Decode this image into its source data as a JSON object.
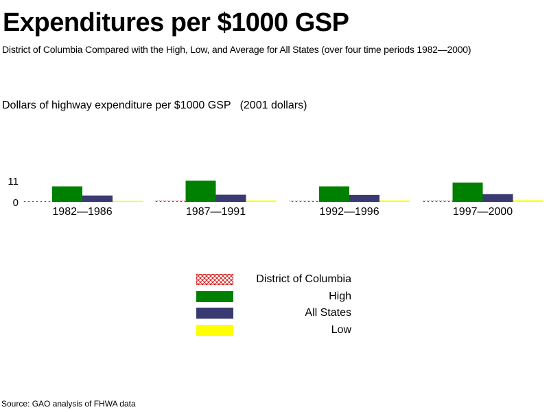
{
  "title": "Expenditures per $1000 GSP",
  "subtitle": "District of Columbia Compared with the High, Low, and Average for All States (over four time periods 1982—2000)",
  "source": "Source: GAO analysis of FHWA data",
  "colors": {
    "dc": "#cc0000",
    "high": "#008000",
    "all_states": "#3a3a72",
    "low": "#ffff00",
    "axis": "#000000"
  },
  "chart_data": {
    "type": "bar",
    "title": "Expenditures per $1000 GSP",
    "subtitle": "District of Columbia Compared with the High, Low, and Average for All States (over four time periods 1982—2000)",
    "xlabel": "",
    "ylabel": "Dollars of highway expenditure per $1000 GSP   (2001 dollars)",
    "ylim": [
      0,
      11
    ],
    "yticks": [
      {
        "value": 0,
        "label": "0"
      },
      {
        "value": 11,
        "label": "11"
      }
    ],
    "categories": [
      "1982—1986",
      "1987—1991",
      "1992—1996",
      "1997—2000"
    ],
    "series": [
      {
        "name": "District of Columbia",
        "key": "dc",
        "pattern": "crosshatch",
        "values": [
          0.3,
          0.6,
          0.5,
          0.6
        ]
      },
      {
        "name": "High",
        "key": "high",
        "values": [
          8.0,
          11.0,
          8.0,
          10.0
        ]
      },
      {
        "name": "All States",
        "key": "all_states",
        "values": [
          3.3,
          3.7,
          3.6,
          4.0
        ]
      },
      {
        "name": "Low",
        "key": "low",
        "values": [
          0.5,
          0.7,
          0.7,
          0.8
        ]
      }
    ],
    "grid": false,
    "legend_position": "bottom-center"
  }
}
